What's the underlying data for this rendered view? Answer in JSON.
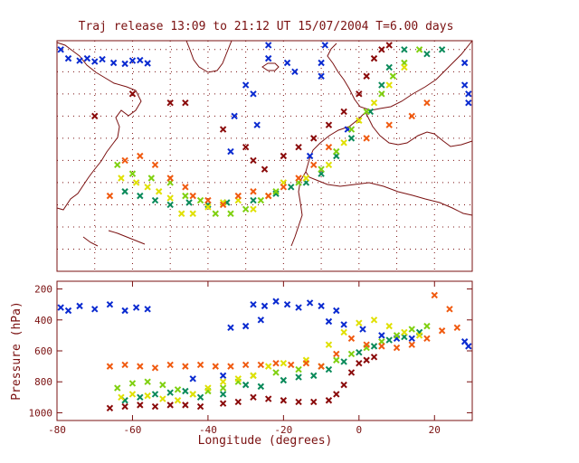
{
  "chart_data": [
    {
      "type": "scatter",
      "panel": "map",
      "title": "Traj release 13:09 to 21:12 UT 15/07/2004     T=6.00 days",
      "xlim": [
        -80,
        30
      ],
      "ylim": [
        20,
        72
      ],
      "grid": true,
      "marker": "x",
      "series": [
        {
          "color": "#0a2ad0",
          "points": [
            [
              -79,
              70
            ],
            [
              -77,
              68
            ],
            [
              -74,
              67.5
            ],
            [
              -72,
              68
            ],
            [
              -70,
              67.3
            ],
            [
              -68,
              67.8
            ],
            [
              -65,
              67
            ],
            [
              -62,
              66.8
            ],
            [
              -60,
              67.5
            ],
            [
              -58,
              67.6
            ],
            [
              -56,
              66.9
            ],
            [
              -30,
              62
            ],
            [
              -28,
              60
            ],
            [
              -24,
              71
            ],
            [
              -24,
              68
            ],
            [
              -19,
              67
            ],
            [
              -17,
              65
            ],
            [
              -10,
              67
            ],
            [
              -9,
              71
            ],
            [
              -10,
              64
            ],
            [
              28,
              67
            ],
            [
              28,
              62
            ],
            [
              29,
              60
            ],
            [
              29,
              58
            ],
            [
              -27,
              53
            ],
            [
              -33,
              55
            ],
            [
              -34,
              47
            ],
            [
              -13,
              46
            ],
            [
              -3,
              52
            ]
          ]
        },
        {
          "color": "#0a8a5a",
          "points": [
            [
              -62,
              38
            ],
            [
              -58,
              37
            ],
            [
              -54,
              36
            ],
            [
              -50,
              35
            ],
            [
              -45,
              35.5
            ],
            [
              -40,
              35
            ],
            [
              -35,
              35.5
            ],
            [
              -28,
              36
            ],
            [
              -22,
              37.5
            ],
            [
              -18,
              39
            ],
            [
              -14,
              40
            ],
            [
              -10,
              42
            ],
            [
              -6,
              46
            ],
            [
              -2,
              50
            ],
            [
              3,
              56
            ],
            [
              6,
              62
            ],
            [
              8,
              66
            ],
            [
              12,
              70
            ],
            [
              18,
              69
            ],
            [
              22,
              70
            ]
          ]
        },
        {
          "color": "#7fd010",
          "points": [
            [
              -64,
              44
            ],
            [
              -60,
              42
            ],
            [
              -55,
              41
            ],
            [
              -50,
              40
            ],
            [
              -46,
              37
            ],
            [
              -42,
              36
            ],
            [
              -38,
              33
            ],
            [
              -34,
              33
            ],
            [
              -30,
              34
            ],
            [
              -26,
              36
            ],
            [
              -22,
              38
            ],
            [
              -16,
              40
            ],
            [
              -10,
              43
            ],
            [
              -6,
              47
            ],
            [
              -2,
              52
            ],
            [
              2,
              56
            ],
            [
              6,
              60
            ],
            [
              9,
              64
            ],
            [
              12,
              67
            ],
            [
              16,
              70
            ]
          ]
        },
        {
          "color": "#e0e000",
          "points": [
            [
              -63,
              41
            ],
            [
              -59,
              40
            ],
            [
              -56,
              39
            ],
            [
              -53,
              38
            ],
            [
              -50,
              36.5
            ],
            [
              -47,
              33
            ],
            [
              -44,
              33
            ],
            [
              -40,
              34.5
            ],
            [
              -36,
              35.5
            ],
            [
              -32,
              36
            ],
            [
              -28,
              34
            ],
            [
              -24,
              37
            ],
            [
              -20,
              40
            ],
            [
              -14,
              41
            ],
            [
              -8,
              44
            ],
            [
              -4,
              49
            ],
            [
              0,
              54
            ],
            [
              4,
              58
            ],
            [
              8,
              62
            ],
            [
              12,
              66
            ]
          ]
        },
        {
          "color": "#f05a10",
          "points": [
            [
              -66,
              37
            ],
            [
              -62,
              45
            ],
            [
              -58,
              46
            ],
            [
              -54,
              44
            ],
            [
              -50,
              41
            ],
            [
              -46,
              39
            ],
            [
              -44,
              37
            ],
            [
              -40,
              36
            ],
            [
              -36,
              35
            ],
            [
              -32,
              37
            ],
            [
              -28,
              38
            ],
            [
              -24,
              37
            ],
            [
              -20,
              39
            ],
            [
              -16,
              41
            ],
            [
              -12,
              44
            ],
            [
              -8,
              48
            ],
            [
              2,
              50
            ],
            [
              8,
              53
            ],
            [
              14,
              55
            ],
            [
              18,
              58
            ]
          ]
        },
        {
          "color": "#8a0a0a",
          "points": [
            [
              -70,
              55
            ],
            [
              -60,
              60
            ],
            [
              -50,
              58
            ],
            [
              -46,
              58
            ],
            [
              -36,
              52
            ],
            [
              -30,
              48
            ],
            [
              -28,
              45
            ],
            [
              -25,
              43
            ],
            [
              -20,
              46
            ],
            [
              -16,
              48
            ],
            [
              -12,
              50
            ],
            [
              -8,
              53
            ],
            [
              -4,
              56
            ],
            [
              0,
              60
            ],
            [
              2,
              64
            ],
            [
              4,
              68
            ],
            [
              6,
              70
            ],
            [
              8,
              71
            ]
          ]
        }
      ]
    },
    {
      "type": "scatter",
      "panel": "profile",
      "xlabel": "Longitude  (degrees)",
      "ylabel": "Pressure  (hPa)",
      "xlim": [
        -80,
        30
      ],
      "ylim": [
        1050,
        150
      ],
      "xticks": [
        -80,
        -60,
        -40,
        -20,
        0,
        20
      ],
      "yticks": [
        200,
        400,
        600,
        800,
        1000
      ],
      "marker": "x",
      "series": [
        {
          "color": "#0a2ad0",
          "points": [
            [
              -79,
              320
            ],
            [
              -77,
              340
            ],
            [
              -74,
              310
            ],
            [
              -70,
              330
            ],
            [
              -66,
              300
            ],
            [
              -62,
              340
            ],
            [
              -59,
              320
            ],
            [
              -56,
              330
            ],
            [
              -28,
              300
            ],
            [
              -25,
              310
            ],
            [
              -22,
              280
            ],
            [
              -19,
              300
            ],
            [
              -16,
              320
            ],
            [
              -13,
              290
            ],
            [
              -10,
              310
            ],
            [
              -6,
              340
            ],
            [
              -30,
              440
            ],
            [
              -26,
              400
            ],
            [
              -34,
              450
            ],
            [
              -8,
              410
            ],
            [
              -4,
              430
            ],
            [
              1,
              460
            ],
            [
              6,
              500
            ],
            [
              10,
              520
            ],
            [
              14,
              520
            ],
            [
              28,
              540
            ],
            [
              29,
              570
            ],
            [
              -36,
              760
            ],
            [
              -44,
              780
            ]
          ]
        },
        {
          "color": "#0a8a5a",
          "points": [
            [
              -62,
              920
            ],
            [
              -58,
              900
            ],
            [
              -54,
              880
            ],
            [
              -50,
              870
            ],
            [
              -46,
              860
            ],
            [
              -42,
              900
            ],
            [
              -36,
              880
            ],
            [
              -30,
              820
            ],
            [
              -26,
              830
            ],
            [
              -20,
              790
            ],
            [
              -16,
              770
            ],
            [
              -12,
              760
            ],
            [
              -8,
              720
            ],
            [
              -4,
              670
            ],
            [
              0,
              610
            ],
            [
              4,
              570
            ],
            [
              8,
              530
            ],
            [
              12,
              510
            ],
            [
              16,
              480
            ]
          ]
        },
        {
          "color": "#7fd010",
          "points": [
            [
              -64,
              840
            ],
            [
              -60,
              810
            ],
            [
              -56,
              800
            ],
            [
              -52,
              820
            ],
            [
              -48,
              850
            ],
            [
              -44,
              880
            ],
            [
              -40,
              860
            ],
            [
              -36,
              840
            ],
            [
              -32,
              800
            ],
            [
              -28,
              760
            ],
            [
              -22,
              740
            ],
            [
              -16,
              720
            ],
            [
              -10,
              700
            ],
            [
              -6,
              660
            ],
            [
              -2,
              620
            ],
            [
              2,
              580
            ],
            [
              6,
              540
            ],
            [
              10,
              500
            ],
            [
              14,
              460
            ],
            [
              18,
              440
            ]
          ]
        },
        {
          "color": "#e0e000",
          "points": [
            [
              -63,
              900
            ],
            [
              -60,
              880
            ],
            [
              -56,
              890
            ],
            [
              -52,
              910
            ],
            [
              -48,
              920
            ],
            [
              -44,
              880
            ],
            [
              -40,
              840
            ],
            [
              -36,
              800
            ],
            [
              -32,
              780
            ],
            [
              -28,
              760
            ],
            [
              -24,
              700
            ],
            [
              -20,
              680
            ],
            [
              -14,
              660
            ],
            [
              -8,
              560
            ],
            [
              -4,
              480
            ],
            [
              0,
              420
            ],
            [
              4,
              400
            ],
            [
              8,
              440
            ],
            [
              12,
              480
            ],
            [
              16,
              500
            ]
          ]
        },
        {
          "color": "#f05a10",
          "points": [
            [
              -66,
              700
            ],
            [
              -62,
              690
            ],
            [
              -58,
              700
            ],
            [
              -54,
              710
            ],
            [
              -50,
              690
            ],
            [
              -46,
              700
            ],
            [
              -42,
              690
            ],
            [
              -38,
              700
            ],
            [
              -34,
              700
            ],
            [
              -30,
              690
            ],
            [
              -26,
              690
            ],
            [
              -22,
              680
            ],
            [
              -18,
              690
            ],
            [
              -14,
              680
            ],
            [
              -10,
              700
            ],
            [
              -6,
              620
            ],
            [
              -2,
              520
            ],
            [
              2,
              560
            ],
            [
              6,
              570
            ],
            [
              10,
              580
            ],
            [
              14,
              560
            ],
            [
              18,
              520
            ],
            [
              22,
              470
            ],
            [
              26,
              450
            ],
            [
              20,
              240
            ],
            [
              24,
              330
            ]
          ]
        },
        {
          "color": "#8a0a0a",
          "points": [
            [
              -66,
              970
            ],
            [
              -62,
              960
            ],
            [
              -58,
              950
            ],
            [
              -54,
              960
            ],
            [
              -50,
              950
            ],
            [
              -46,
              950
            ],
            [
              -42,
              960
            ],
            [
              -36,
              940
            ],
            [
              -32,
              930
            ],
            [
              -28,
              900
            ],
            [
              -24,
              910
            ],
            [
              -20,
              920
            ],
            [
              -16,
              930
            ],
            [
              -12,
              930
            ],
            [
              -8,
              920
            ],
            [
              -6,
              880
            ],
            [
              -4,
              820
            ],
            [
              -2,
              740
            ],
            [
              0,
              680
            ],
            [
              2,
              660
            ],
            [
              4,
              640
            ]
          ]
        }
      ]
    }
  ]
}
